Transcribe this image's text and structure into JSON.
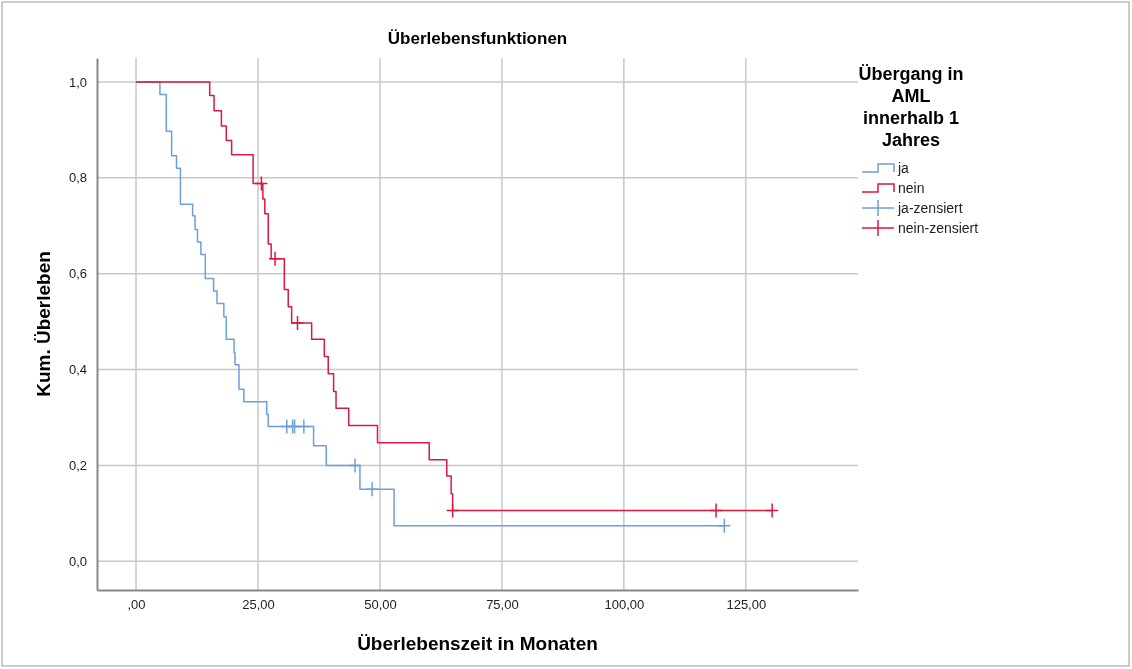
{
  "chart_data": {
    "type": "step",
    "title": "Überlebensfunktionen",
    "xlabel": "Überlebenszeit in Monaten",
    "ylabel": "Kum. Überleben",
    "legend_title": "Übergang in AML innerhalb 1 Jahres",
    "legend": "top right",
    "grid": true,
    "xlim": [
      -8,
      148
    ],
    "ylim": [
      -0.06,
      1.05
    ],
    "xticks": [
      {
        "value": 0,
        "label": ",00"
      },
      {
        "value": 25,
        "label": "25,00"
      },
      {
        "value": 50,
        "label": "50,00"
      },
      {
        "value": 75,
        "label": "75,00"
      },
      {
        "value": 100,
        "label": "100,00"
      },
      {
        "value": 125,
        "label": "125,00"
      }
    ],
    "yticks": [
      {
        "value": 0,
        "label": "0,0"
      },
      {
        "value": 0.2,
        "label": "0,2"
      },
      {
        "value": 0.4,
        "label": "0,4"
      },
      {
        "value": 0.6,
        "label": "0,6"
      },
      {
        "value": 0.8,
        "label": "0,8"
      },
      {
        "value": 1,
        "label": "1,0"
      }
    ],
    "series": [
      {
        "name": "ja",
        "color": "#6d9fdc",
        "x": [
          0,
          4.9,
          6.2,
          7.3,
          8.3,
          9.1,
          11.6,
          12.1,
          12.6,
          13.3,
          14.2,
          15.9,
          16.6,
          18.0,
          18.5,
          20.1,
          20.3,
          21.1,
          22.1,
          26.8,
          27.1,
          36.4,
          39.0,
          45.9,
          52.9,
          120.6
        ],
        "values": [
          1,
          0.974,
          0.897,
          0.846,
          0.82,
          0.745,
          0.721,
          0.692,
          0.666,
          0.64,
          0.59,
          0.564,
          0.538,
          0.51,
          0.463,
          0.435,
          0.41,
          0.359,
          0.333,
          0.306,
          0.281,
          0.241,
          0.2,
          0.15,
          0.074,
          0.074
        ]
      },
      {
        "name": "nein",
        "color": "#d9193f",
        "x": [
          0,
          15.1,
          16.0,
          17.5,
          18.5,
          19.6,
          24.0,
          26.0,
          26.4,
          27.1,
          27.7,
          30.4,
          31.2,
          31.9,
          36.0,
          38.6,
          39.4,
          40.5,
          41.0,
          43.6,
          49.5,
          60.1,
          63.7,
          64.6,
          64.9,
          130.4
        ],
        "values": [
          1,
          0.972,
          0.94,
          0.908,
          0.878,
          0.848,
          0.788,
          0.756,
          0.725,
          0.662,
          0.631,
          0.567,
          0.531,
          0.497,
          0.463,
          0.427,
          0.391,
          0.354,
          0.319,
          0.283,
          0.247,
          0.212,
          0.178,
          0.141,
          0.106,
          0.106
        ]
      },
      {
        "name": "ja-zensiert",
        "type": "scatter",
        "color": "#6d9fdc",
        "marker": "cross",
        "x": [
          30.9,
          32.1,
          32.5,
          34.4,
          44.9,
          48.4,
          120.6
        ],
        "values": [
          0.281,
          0.281,
          0.281,
          0.281,
          0.2,
          0.15,
          0.074
        ]
      },
      {
        "name": "nein-zensiert",
        "type": "scatter",
        "color": "#d9193f",
        "marker": "cross",
        "x": [
          25.7,
          28.5,
          33.1,
          64.9,
          118.9,
          130.4
        ],
        "values": [
          0.788,
          0.631,
          0.497,
          0.106,
          0.106,
          0.106
        ]
      }
    ]
  }
}
